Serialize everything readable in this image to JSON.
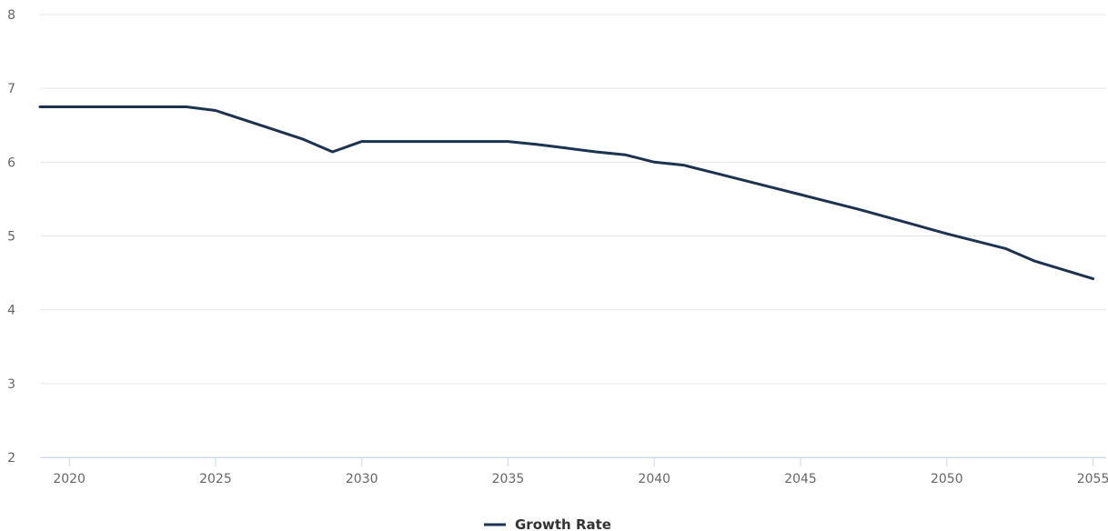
{
  "chart_data": {
    "type": "line",
    "title": "",
    "xlabel": "",
    "ylabel": "",
    "xlim": [
      2019,
      2055.2
    ],
    "ylim": [
      2,
      8
    ],
    "x_ticks": [
      2020,
      2025,
      2030,
      2035,
      2040,
      2045,
      2050,
      2055
    ],
    "y_ticks": [
      2,
      3,
      4,
      5,
      6,
      7,
      8
    ],
    "grid": "horizontal",
    "legend": "bottom-center",
    "series": [
      {
        "name": "Growth Rate",
        "color": "#1b3350",
        "x": [
          2019,
          2020,
          2021,
          2022,
          2023,
          2024,
          2025,
          2026,
          2027,
          2028,
          2029,
          2030,
          2031,
          2032,
          2033,
          2034,
          2035,
          2036,
          2037,
          2038,
          2039,
          2040,
          2041,
          2042,
          2043,
          2044,
          2045,
          2046,
          2047,
          2048,
          2049,
          2050,
          2051,
          2052,
          2053,
          2054,
          2055
        ],
        "y": [
          6.75,
          6.75,
          6.75,
          6.75,
          6.75,
          6.75,
          6.7,
          6.57,
          6.44,
          6.31,
          6.14,
          6.28,
          6.28,
          6.28,
          6.28,
          6.28,
          6.28,
          6.24,
          6.19,
          6.14,
          6.1,
          6.0,
          5.96,
          5.86,
          5.76,
          5.66,
          5.56,
          5.46,
          5.36,
          5.25,
          5.14,
          5.03,
          4.93,
          4.83,
          4.66,
          4.54,
          4.42
        ]
      }
    ]
  }
}
